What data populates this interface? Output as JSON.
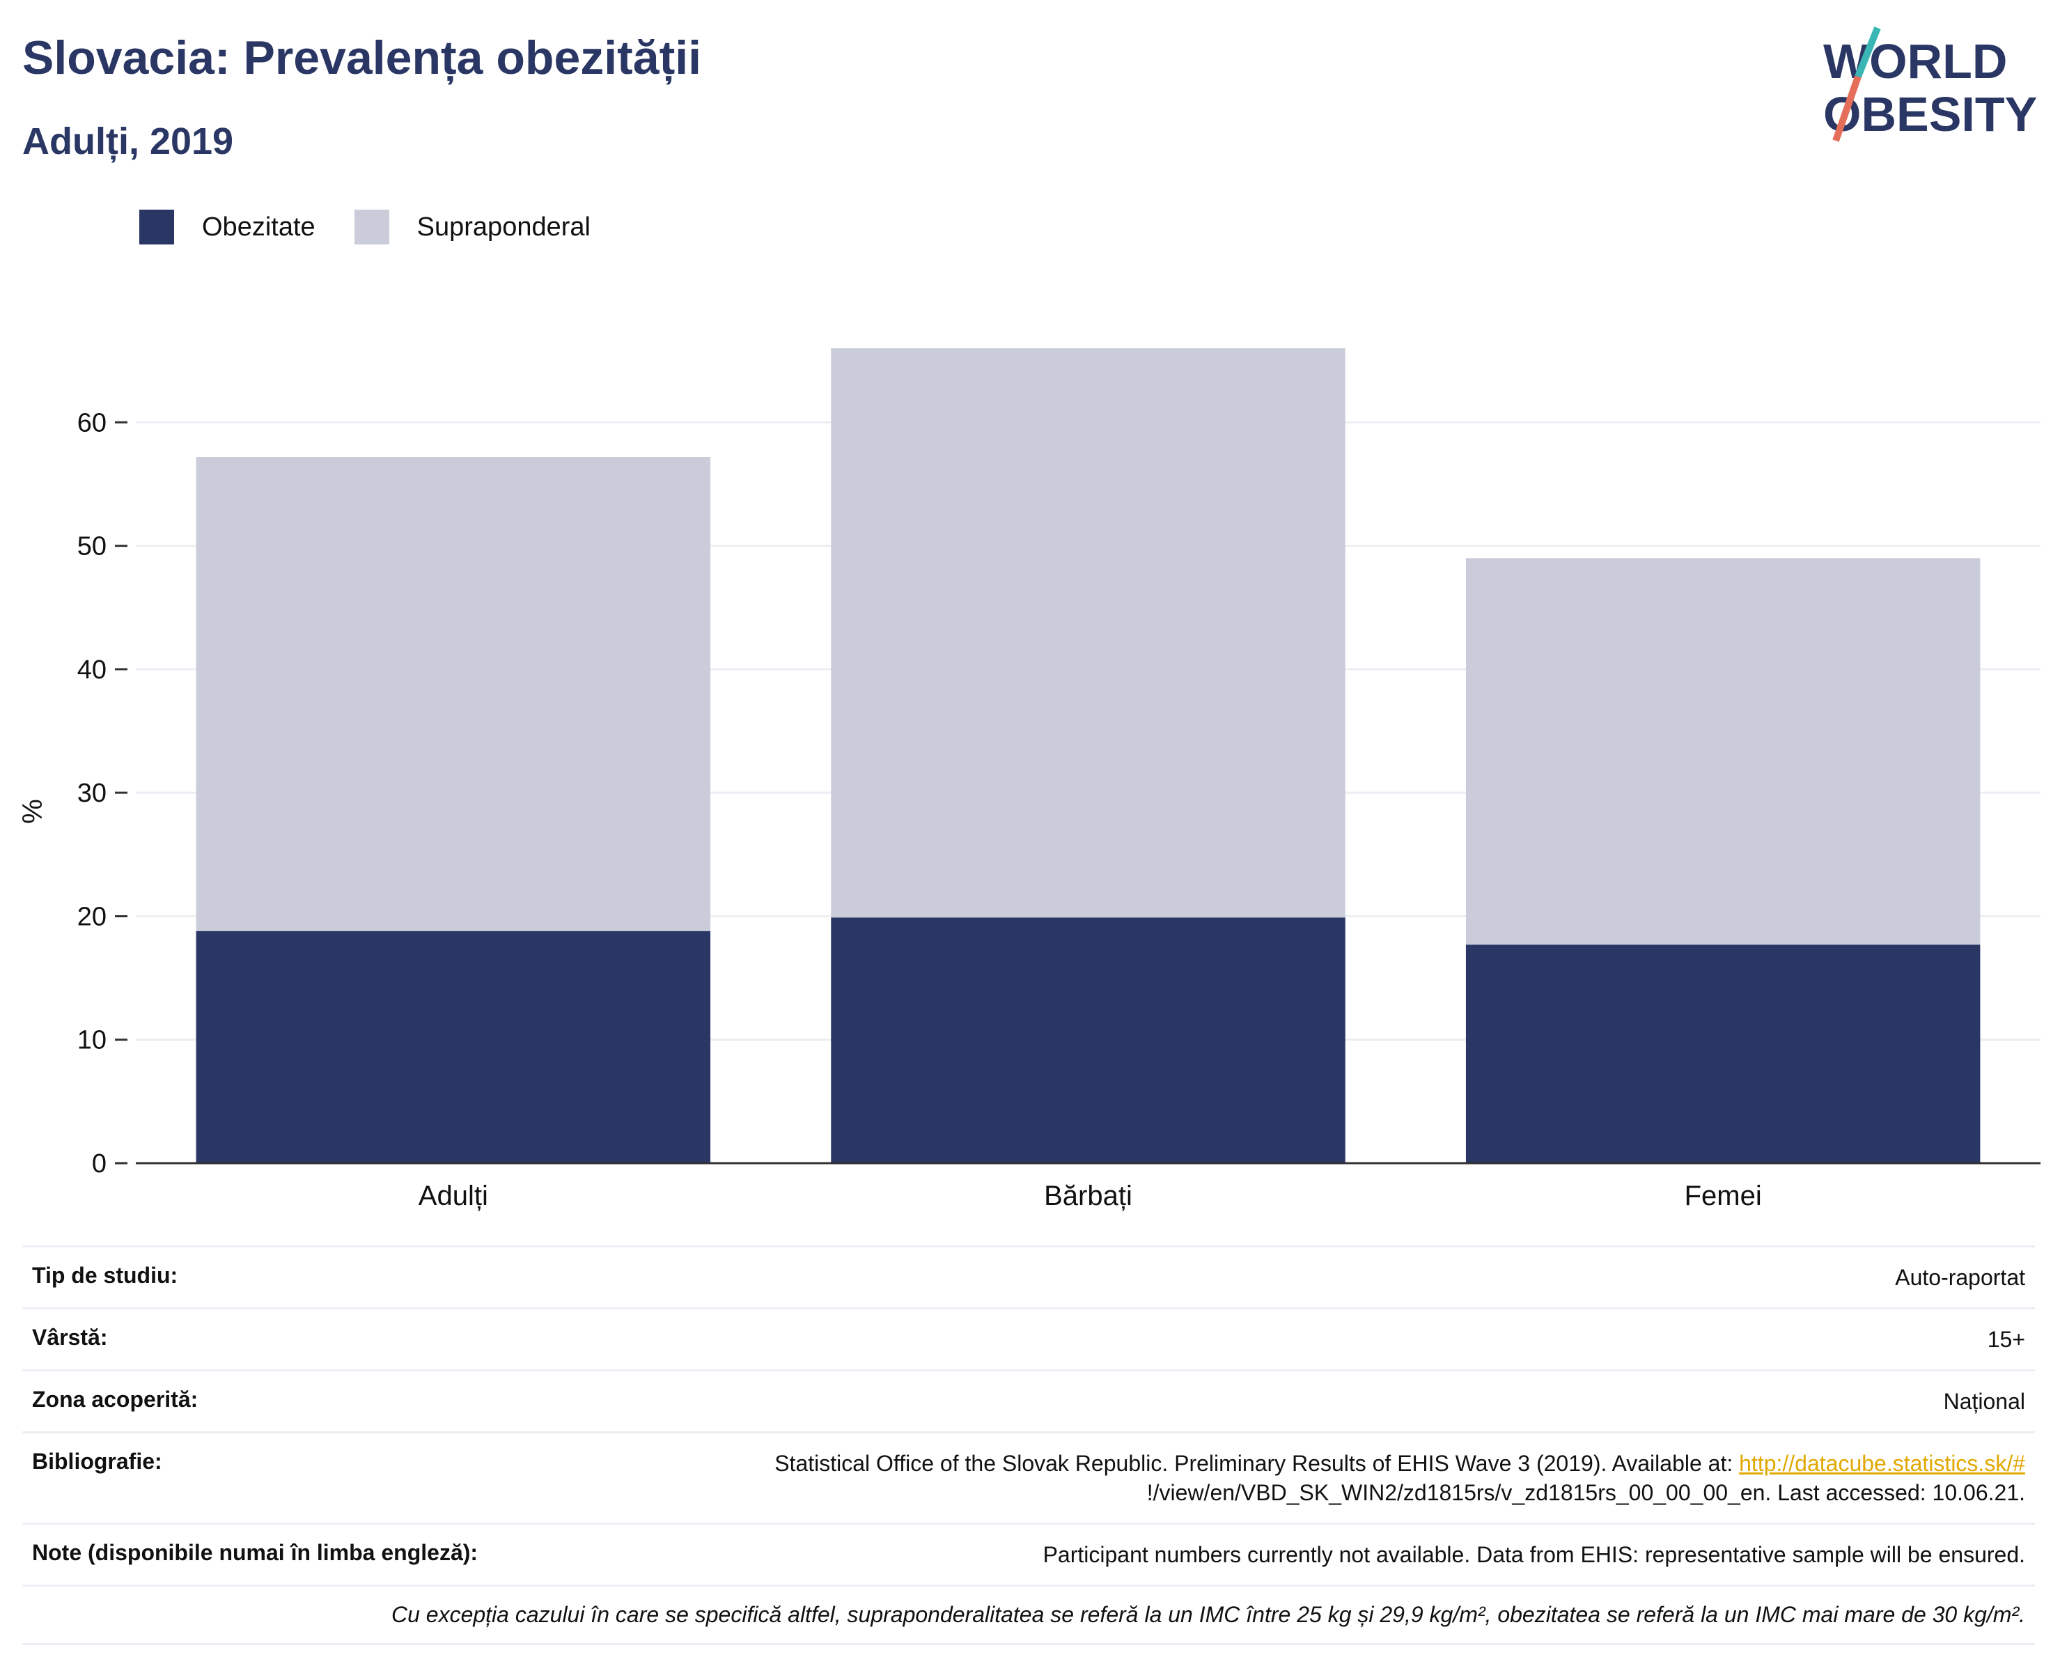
{
  "header": {
    "title": "Slovacia: Prevalența obezității",
    "subtitle": "Adulți, 2019"
  },
  "logo": {
    "line1": "WORLD",
    "line2": "OBESITY"
  },
  "colors": {
    "obesity": "#2a3663",
    "overweight": "#cacdd9",
    "text": "#2a3663",
    "link": "#e0a800"
  },
  "chart_data": {
    "type": "bar",
    "stacked": true,
    "categories": [
      "Adulți",
      "Bărbați",
      "Femei"
    ],
    "series": [
      {
        "name": "Obezitate",
        "values": [
          18.8,
          19.9,
          17.7
        ]
      },
      {
        "name": "Supraponderal",
        "values": [
          38.4,
          46.1,
          31.3
        ]
      }
    ],
    "ylabel": "%",
    "ylim": [
      0,
      66
    ],
    "yticks": [
      0,
      10,
      20,
      30,
      40,
      50,
      60
    ],
    "grid": true,
    "legend_position": "top-left"
  },
  "info": {
    "study_type": {
      "label": "Tip de studiu:",
      "value": "Auto-raportat"
    },
    "age": {
      "label": "Vârstă:",
      "value": "15+"
    },
    "coverage": {
      "label": "Zona acoperită:",
      "value": "Național"
    },
    "bibliography": {
      "label": "Bibliografie:",
      "text": "Statistical Office of the Slovak Republic. Preliminary Results of EHIS Wave 3 (2019). Available at: ",
      "link": "http://datacube.statistics.sk/#",
      "text2": "!/view/en/VBD_SK_WIN2/zd1815rs/v_zd1815rs_00_00_00_en. Last accessed: 10.06.21."
    },
    "notes": {
      "label": "Note (disponibile numai în limba engleză):",
      "value": "Participant numbers currently not available. Data from EHIS: representative sample will be ensured."
    },
    "footnote": "Cu excepția cazului în care se specifică altfel, supraponderalitatea se referă la un IMC între 25 kg și 29,9 kg/m², obezitatea se referă la un IMC mai mare de 30 kg/m²."
  }
}
